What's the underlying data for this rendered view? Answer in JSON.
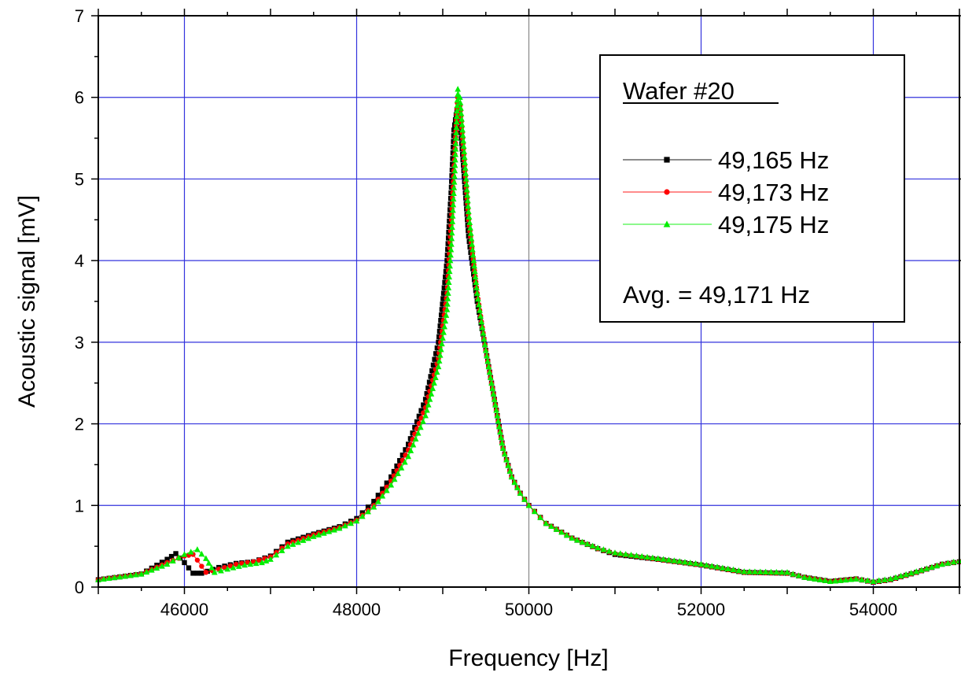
{
  "chart_data": {
    "type": "line",
    "xlabel": "Frequency [Hz]",
    "ylabel": "Acoustic signal [mV]",
    "xlim": [
      45000,
      55000
    ],
    "ylim": [
      0,
      7
    ],
    "x_ticks": [
      46000,
      48000,
      50000,
      52000,
      54000
    ],
    "y_ticks": [
      0,
      1,
      2,
      3,
      4,
      5,
      6,
      7
    ],
    "grid": true,
    "grid_color": "#3333dd",
    "legend": {
      "title": "Wafer #20",
      "placement": "top-right",
      "note": "Avg. = 49,171 Hz"
    },
    "series": [
      {
        "name": "49,165 Hz",
        "color": "#000000",
        "marker": "square",
        "points": [
          [
            45000,
            0.09
          ],
          [
            45500,
            0.16
          ],
          [
            45800,
            0.34
          ],
          [
            45900,
            0.41
          ],
          [
            46000,
            0.3
          ],
          [
            46100,
            0.17
          ],
          [
            46200,
            0.17
          ],
          [
            46400,
            0.24
          ],
          [
            46600,
            0.29
          ],
          [
            46800,
            0.31
          ],
          [
            47000,
            0.38
          ],
          [
            47200,
            0.55
          ],
          [
            47500,
            0.65
          ],
          [
            47800,
            0.74
          ],
          [
            48000,
            0.84
          ],
          [
            48200,
            1.05
          ],
          [
            48400,
            1.35
          ],
          [
            48600,
            1.75
          ],
          [
            48800,
            2.3
          ],
          [
            48950,
            3.0
          ],
          [
            49050,
            4.0
          ],
          [
            49100,
            4.9
          ],
          [
            49130,
            5.6
          ],
          [
            49165,
            5.85
          ],
          [
            49200,
            5.7
          ],
          [
            49230,
            5.3
          ],
          [
            49300,
            4.3
          ],
          [
            49400,
            3.5
          ],
          [
            49500,
            2.9
          ],
          [
            49600,
            2.3
          ],
          [
            49700,
            1.7
          ],
          [
            49800,
            1.35
          ],
          [
            49900,
            1.15
          ],
          [
            50000,
            1.0
          ],
          [
            50200,
            0.78
          ],
          [
            50500,
            0.6
          ],
          [
            50800,
            0.47
          ],
          [
            51000,
            0.4
          ],
          [
            51500,
            0.34
          ],
          [
            52000,
            0.27
          ],
          [
            52500,
            0.18
          ],
          [
            53000,
            0.17
          ],
          [
            53200,
            0.12
          ],
          [
            53500,
            0.07
          ],
          [
            53800,
            0.1
          ],
          [
            54000,
            0.06
          ],
          [
            54200,
            0.09
          ],
          [
            54500,
            0.18
          ],
          [
            54800,
            0.28
          ],
          [
            55000,
            0.31
          ]
        ]
      },
      {
        "name": "49,173 Hz",
        "color": "#ff0000",
        "marker": "circle",
        "points": [
          [
            45000,
            0.09
          ],
          [
            45500,
            0.16
          ],
          [
            45800,
            0.3
          ],
          [
            46000,
            0.38
          ],
          [
            46100,
            0.4
          ],
          [
            46150,
            0.33
          ],
          [
            46250,
            0.18
          ],
          [
            46400,
            0.22
          ],
          [
            46600,
            0.28
          ],
          [
            46800,
            0.31
          ],
          [
            47000,
            0.37
          ],
          [
            47200,
            0.53
          ],
          [
            47500,
            0.64
          ],
          [
            47800,
            0.73
          ],
          [
            48000,
            0.82
          ],
          [
            48200,
            1.0
          ],
          [
            48400,
            1.3
          ],
          [
            48600,
            1.68
          ],
          [
            48800,
            2.2
          ],
          [
            48950,
            2.8
          ],
          [
            49050,
            3.6
          ],
          [
            49100,
            4.5
          ],
          [
            49140,
            5.3
          ],
          [
            49173,
            6.0
          ],
          [
            49200,
            5.9
          ],
          [
            49230,
            5.5
          ],
          [
            49300,
            4.5
          ],
          [
            49400,
            3.6
          ],
          [
            49500,
            2.9
          ],
          [
            49600,
            2.3
          ],
          [
            49700,
            1.7
          ],
          [
            49800,
            1.35
          ],
          [
            49900,
            1.15
          ],
          [
            50000,
            1.0
          ],
          [
            50200,
            0.78
          ],
          [
            50500,
            0.6
          ],
          [
            50800,
            0.47
          ],
          [
            51000,
            0.41
          ],
          [
            51500,
            0.34
          ],
          [
            52000,
            0.27
          ],
          [
            52500,
            0.18
          ],
          [
            53000,
            0.17
          ],
          [
            53200,
            0.12
          ],
          [
            53500,
            0.07
          ],
          [
            53800,
            0.1
          ],
          [
            54000,
            0.06
          ],
          [
            54200,
            0.09
          ],
          [
            54500,
            0.18
          ],
          [
            54800,
            0.28
          ],
          [
            55000,
            0.31
          ]
        ]
      },
      {
        "name": "49,175 Hz",
        "color": "#00ee00",
        "marker": "triangle",
        "points": [
          [
            45000,
            0.09
          ],
          [
            45500,
            0.16
          ],
          [
            45800,
            0.28
          ],
          [
            46000,
            0.4
          ],
          [
            46150,
            0.46
          ],
          [
            46250,
            0.35
          ],
          [
            46350,
            0.18
          ],
          [
            46500,
            0.22
          ],
          [
            46700,
            0.27
          ],
          [
            46900,
            0.3
          ],
          [
            47000,
            0.34
          ],
          [
            47200,
            0.5
          ],
          [
            47500,
            0.62
          ],
          [
            47800,
            0.72
          ],
          [
            48000,
            0.81
          ],
          [
            48200,
            0.98
          ],
          [
            48400,
            1.25
          ],
          [
            48600,
            1.6
          ],
          [
            48800,
            2.1
          ],
          [
            48950,
            2.7
          ],
          [
            49050,
            3.4
          ],
          [
            49100,
            4.2
          ],
          [
            49140,
            5.1
          ],
          [
            49175,
            6.1
          ],
          [
            49200,
            6.0
          ],
          [
            49230,
            5.6
          ],
          [
            49300,
            4.6
          ],
          [
            49400,
            3.6
          ],
          [
            49500,
            2.9
          ],
          [
            49600,
            2.3
          ],
          [
            49700,
            1.7
          ],
          [
            49800,
            1.35
          ],
          [
            49900,
            1.15
          ],
          [
            50000,
            1.0
          ],
          [
            50200,
            0.78
          ],
          [
            50500,
            0.6
          ],
          [
            50800,
            0.48
          ],
          [
            51000,
            0.42
          ],
          [
            51500,
            0.35
          ],
          [
            52000,
            0.28
          ],
          [
            52500,
            0.19
          ],
          [
            53000,
            0.18
          ],
          [
            53200,
            0.12
          ],
          [
            53500,
            0.07
          ],
          [
            53800,
            0.1
          ],
          [
            54000,
            0.07
          ],
          [
            54200,
            0.1
          ],
          [
            54500,
            0.19
          ],
          [
            54800,
            0.28
          ],
          [
            55000,
            0.32
          ]
        ]
      }
    ]
  }
}
